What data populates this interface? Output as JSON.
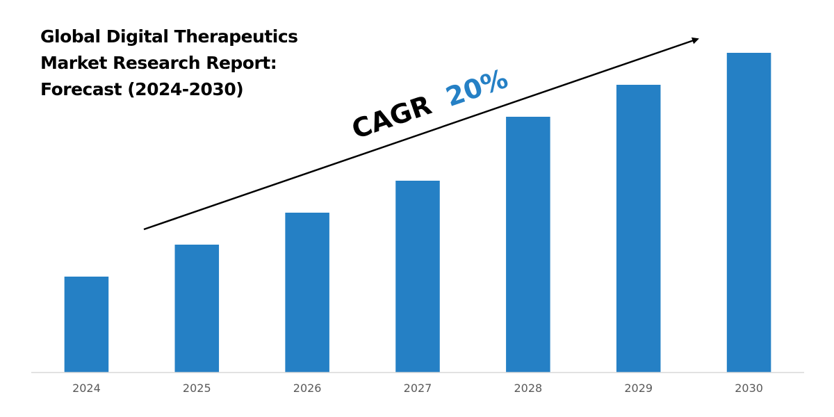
{
  "title_lines": [
    "Global Digital Therapeutics",
    "Market Research Report:",
    "Forecast (2024-2030)"
  ],
  "annotation": {
    "prefix": "CAGR",
    "value": "20%",
    "prefix_color": "#000000",
    "value_color": "#2580C5"
  },
  "chart_data": {
    "type": "bar",
    "title": "Global Digital Therapeutics Market Research Report: Forecast (2024-2030)",
    "categories": [
      "2024",
      "2025",
      "2026",
      "2027",
      "2028",
      "2029",
      "2030"
    ],
    "values": [
      30,
      40,
      50,
      60,
      80,
      90,
      100
    ],
    "ylim": [
      0,
      100
    ],
    "y_axis_shown": false,
    "grid": false,
    "legend": "none",
    "bar_color": "#2580C5",
    "axis_color": "#D9D9D9"
  }
}
